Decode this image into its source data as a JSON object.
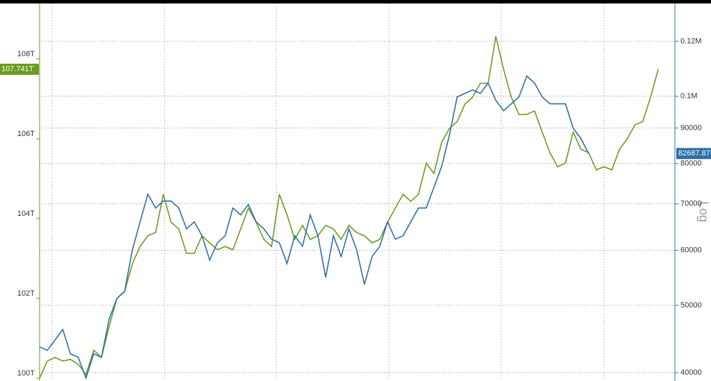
{
  "chart_data": {
    "type": "line",
    "categories": [
      null,
      null,
      null,
      null,
      null,
      null,
      null,
      null,
      null,
      null,
      null,
      null,
      null,
      null,
      null,
      null,
      null,
      null,
      null,
      null,
      null,
      null,
      null,
      null,
      null,
      null,
      null,
      null,
      null,
      null,
      null,
      null,
      null,
      null,
      null,
      null,
      null,
      null,
      null,
      null,
      null,
      null,
      null,
      null,
      null,
      null,
      null,
      null,
      null,
      null,
      null,
      null,
      null,
      null,
      null,
      null,
      null,
      null,
      null,
      null,
      null,
      null,
      null,
      null,
      null,
      null,
      null,
      null,
      null,
      null,
      null,
      null,
      null,
      null,
      null,
      null,
      null,
      null,
      null,
      null,
      null
    ],
    "ylim": [
      99.93,
      109.39
    ],
    "yticks": [
      {
        "value": 100,
        "label": "100T"
      },
      {
        "value": 102,
        "label": "102T"
      },
      {
        "value": 104,
        "label": "104T"
      },
      {
        "value": 106,
        "label": "106T"
      },
      {
        "value": 108,
        "label": "108T"
      }
    ],
    "y2lim": [
      38900,
      136000
    ],
    "y2ticks": [
      40000,
      50000,
      60000,
      70000,
      80000,
      90000,
      {
        "value": 100000,
        "label": "0.1M"
      },
      {
        "value": 120000,
        "label": "0.12M"
      }
    ],
    "y2_log": true,
    "y2_scale_label": "Log",
    "grid": true,
    "series": [
      {
        "color": "#6a9a1f",
        "end_label": "107.741T",
        "values": [
          100.0,
          100.43,
          100.52,
          100.43,
          100.47,
          100.35,
          100.09,
          100.7,
          100.52,
          101.3,
          102.0,
          102.17,
          102.87,
          103.3,
          103.57,
          103.65,
          104.61,
          103.91,
          103.74,
          103.13,
          103.13,
          103.57,
          103.39,
          103.22,
          103.3,
          103.22,
          103.74,
          104.26,
          103.91,
          103.48,
          103.3,
          104.61,
          104.09,
          103.48,
          103.83,
          103.48,
          103.57,
          103.83,
          103.74,
          103.48,
          103.83,
          103.65,
          103.57,
          103.39,
          103.48,
          103.91,
          104.26,
          104.61,
          104.43,
          104.61,
          105.39,
          105.13,
          105.91,
          106.26,
          106.43,
          106.87,
          107.04,
          107.39,
          107.39,
          108.57,
          107.74,
          107.04,
          106.61,
          106.61,
          106.7,
          106.17,
          105.65,
          105.3,
          105.39,
          106.17,
          105.74,
          105.65,
          105.22,
          105.3,
          105.22,
          105.74,
          106.0,
          106.35,
          106.43,
          107.04,
          107.741
        ]
      },
      {
        "color": "#2e6ea6",
        "axis": "y2",
        "end_label": "82687.87",
        "values": [
          43560,
          43060,
          44570,
          46140,
          42560,
          42080,
          39270,
          42560,
          42080,
          47760,
          51180,
          52370,
          60120,
          65930,
          72290,
          69030,
          70640,
          70640,
          69030,
          64420,
          65930,
          62960,
          58080,
          61530,
          62960,
          69030,
          67460,
          69830,
          65930,
          64420,
          62240,
          61530,
          57420,
          62960,
          60820,
          67460,
          62960,
          54840,
          62960,
          58760,
          64420,
          60120,
          53590,
          58760,
          60820,
          65930,
          62240,
          62960,
          65930,
          69030,
          69030,
          73970,
          79260,
          87920,
          99780,
          100940,
          102110,
          100940,
          104490,
          98640,
          95290,
          97510,
          99780,
          106920,
          104490,
          99780,
          97510,
          97510,
          97510,
          89960,
          86910,
          82687.87,
          null,
          null,
          null,
          null,
          null,
          null,
          null,
          null,
          null
        ]
      }
    ]
  }
}
